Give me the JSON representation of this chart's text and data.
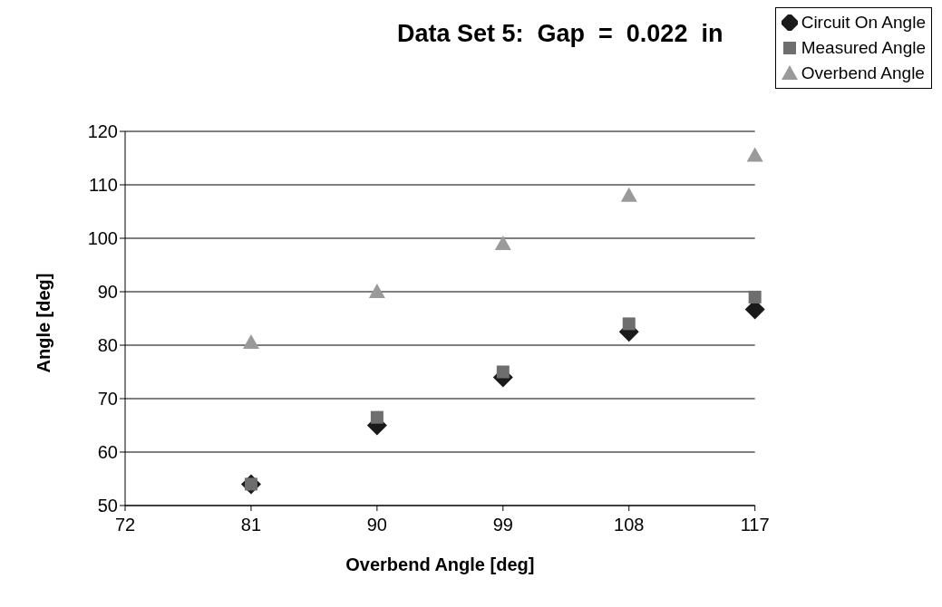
{
  "chart_data": {
    "type": "scatter",
    "title": "Data Set 5:  Gap  =  0.022  in",
    "xlabel": "Overbend  Angle  [deg]",
    "ylabel": "Angle  [deg]",
    "x": [
      81,
      90,
      99,
      108,
      117
    ],
    "series": [
      {
        "name": "Circuit On Angle",
        "color": "#1a1a1a",
        "marker": "diamond",
        "values": [
          54,
          65,
          74,
          82.5,
          86.7
        ]
      },
      {
        "name": "Measured Angle",
        "color": "#6e6e6e",
        "marker": "square",
        "values": [
          54,
          66.5,
          75,
          84,
          89
        ]
      },
      {
        "name": "Overbend Angle",
        "color": "#9a9a9a",
        "marker": "triangle",
        "values": [
          80.5,
          90,
          99,
          108,
          115.5
        ]
      }
    ],
    "xlim": [
      72,
      117
    ],
    "xticks": [
      72,
      81,
      90,
      99,
      108,
      117
    ],
    "ylim": [
      50,
      120
    ],
    "yticks": [
      50,
      60,
      70,
      80,
      90,
      100,
      110,
      120
    ],
    "grid": "y",
    "legend": "top right"
  }
}
